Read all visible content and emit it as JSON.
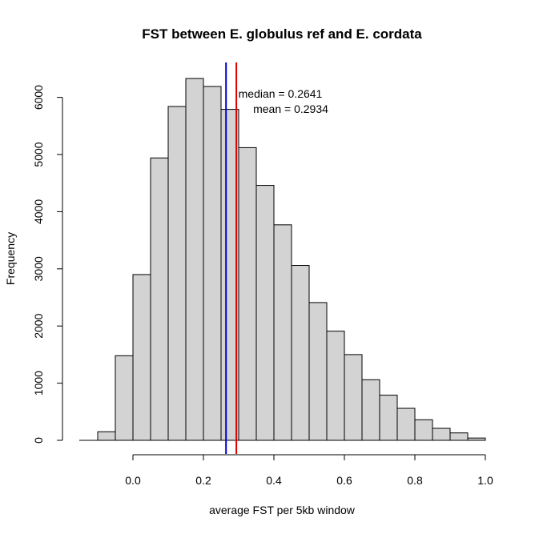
{
  "chart_data": {
    "type": "bar",
    "title": "FST between E. globulus ref and E. cordata",
    "xlabel": "average FST per 5kb window",
    "ylabel": "Frequency",
    "bin_width": 0.05,
    "bin_starts": [
      -0.1,
      -0.05,
      0.0,
      0.05,
      0.1,
      0.15,
      0.2,
      0.25,
      0.3,
      0.35,
      0.4,
      0.45,
      0.5,
      0.55,
      0.6,
      0.65,
      0.7,
      0.75,
      0.8,
      0.85,
      0.9,
      0.95
    ],
    "values": [
      150,
      1480,
      2900,
      4940,
      5840,
      6330,
      6190,
      5790,
      5120,
      4460,
      3770,
      3060,
      2410,
      1910,
      1500,
      1060,
      790,
      560,
      360,
      210,
      130,
      40
    ],
    "xlim": [
      -0.15,
      1.0
    ],
    "ylim": [
      0,
      6500
    ],
    "x_ticks": [
      0.0,
      0.2,
      0.4,
      0.6,
      0.8,
      1.0
    ],
    "x_tick_labels": [
      "0.0",
      "0.2",
      "0.4",
      "0.6",
      "0.8",
      "1.0"
    ],
    "y_ticks": [
      0,
      1000,
      2000,
      3000,
      4000,
      5000,
      6000
    ],
    "y_tick_labels": [
      "0",
      "1000",
      "2000",
      "3000",
      "4000",
      "5000",
      "6000"
    ],
    "bar_color": "#d3d3d3",
    "reference_lines": [
      {
        "value": 0.2641,
        "color": "#0000cc",
        "label": "median = 0.2641"
      },
      {
        "value": 0.2934,
        "color": "#dd0000",
        "label": "mean = 0.2934"
      }
    ],
    "grid": false
  }
}
